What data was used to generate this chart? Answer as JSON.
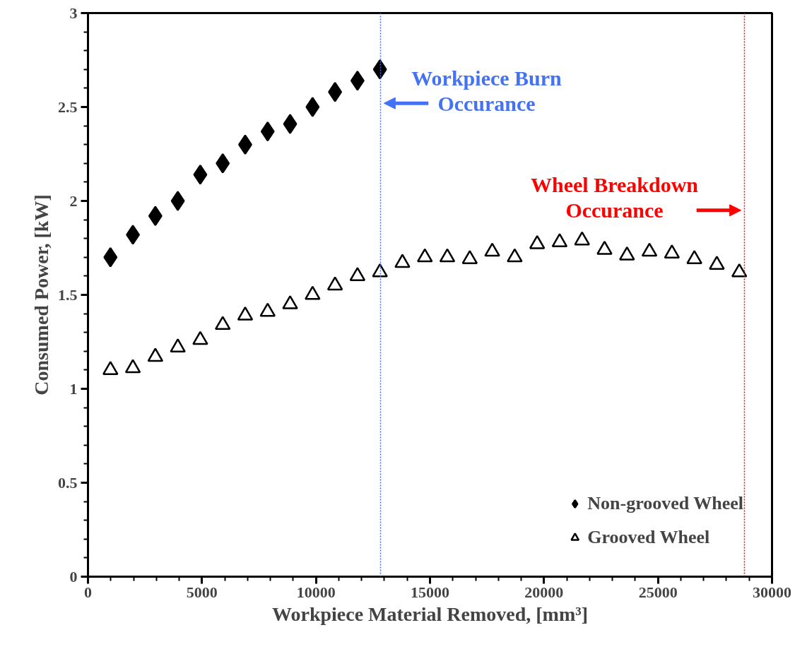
{
  "chart_data": {
    "type": "scatter",
    "xlabel": "Workpiece Material Removed, [mm³]",
    "ylabel": "Consumed Power, [kW]",
    "xlim": [
      0,
      30000
    ],
    "xticks": [
      0,
      5000,
      10000,
      15000,
      20000,
      25000,
      30000
    ],
    "ylim": [
      0,
      3
    ],
    "yticks": [
      0,
      0.5,
      1,
      1.5,
      2,
      2.5,
      3
    ],
    "grid": false,
    "legend": "bottom right",
    "series": [
      {
        "name": "Non-grooved Wheel",
        "color": "#000000",
        "marker": "diamond",
        "x": [
          985,
          1970,
          2955,
          3940,
          4925,
          5910,
          6895,
          7880,
          8865,
          9850,
          10835,
          11820,
          12805
        ],
        "values": [
          1.7,
          1.82,
          1.92,
          2.0,
          2.14,
          2.2,
          2.3,
          2.37,
          2.41,
          2.5,
          2.58,
          2.64,
          2.7
        ]
      },
      {
        "name": "Grooved Wheel",
        "color": "#000000",
        "marker": "triangle",
        "x": [
          985,
          1970,
          2955,
          3940,
          4925,
          5910,
          6895,
          7880,
          8865,
          9850,
          10835,
          11820,
          12805,
          13790,
          14775,
          15760,
          16745,
          17730,
          18715,
          19700,
          20685,
          21670,
          22655,
          23640,
          24625,
          25610,
          26595,
          27580,
          28565
        ],
        "values": [
          1.1,
          1.11,
          1.17,
          1.22,
          1.26,
          1.34,
          1.39,
          1.41,
          1.45,
          1.5,
          1.55,
          1.6,
          1.62,
          1.67,
          1.7,
          1.7,
          1.69,
          1.73,
          1.7,
          1.77,
          1.78,
          1.79,
          1.74,
          1.71,
          1.73,
          1.72,
          1.69,
          1.66,
          1.62
        ]
      }
    ],
    "ref_lines": [
      {
        "axis": "x",
        "value": 12830,
        "color": "#4472f4",
        "line_style": "dotted"
      },
      {
        "axis": "x",
        "value": 28790,
        "color": "#ff0000",
        "line_style": "dotted"
      }
    ],
    "annotations": [
      {
        "text": "Workpiece Burn Occurance",
        "x": 12830,
        "y": 2.52
      },
      {
        "text": "Wheel Breakdown Occurance",
        "x": 28790,
        "y": 1.95
      }
    ]
  }
}
